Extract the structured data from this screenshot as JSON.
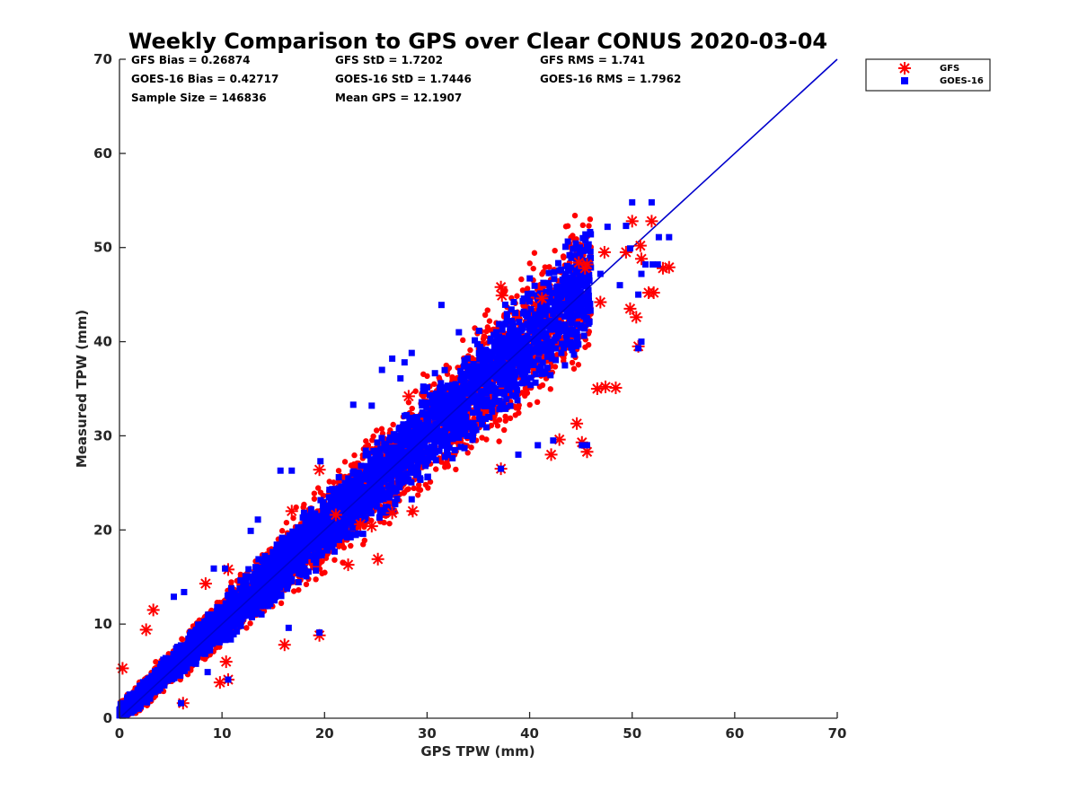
{
  "chart_data": {
    "type": "scatter",
    "title": "Weekly Comparison to GPS over Clear CONUS 2020-03-04",
    "xlabel": "GPS TPW (mm)",
    "ylabel": "Measured TPW (mm)",
    "xlim": [
      0,
      70
    ],
    "ylim": [
      0,
      70
    ],
    "x_ticks": [
      "0",
      "10",
      "20",
      "30",
      "40",
      "50",
      "60",
      "70"
    ],
    "y_ticks": [
      "0",
      "10",
      "20",
      "30",
      "40",
      "50",
      "60",
      "70"
    ],
    "grid": false,
    "legend_position": "outside top-right",
    "stats": [
      [
        "GFS Bias = 0.26874",
        "GFS StD = 1.7202",
        "GFS RMS = 1.741"
      ],
      [
        "GOES-16 Bias = 0.42717",
        "GOES-16 StD = 1.7446",
        "GOES-16 RMS = 1.7962"
      ],
      [
        "Sample Size = 146836",
        "Mean GPS = 12.1907",
        ""
      ]
    ],
    "reference_line": {
      "label": "1:1",
      "x": [
        0,
        70
      ],
      "y": [
        0,
        70
      ],
      "color": "#0000cc"
    },
    "series": [
      {
        "name": "GFS",
        "marker": "asterisk",
        "color": "#ff0000",
        "outliers": [
          [
            50,
            52.8
          ],
          [
            51.9,
            52.8
          ],
          [
            47.3,
            49.5
          ],
          [
            49.4,
            49.5
          ],
          [
            50.8,
            50.2
          ],
          [
            50.9,
            48.8
          ],
          [
            53.0,
            47.8
          ],
          [
            53.6,
            47.9
          ],
          [
            51.6,
            45.2
          ],
          [
            52.1,
            45.2
          ],
          [
            44.8,
            48.4
          ],
          [
            45.6,
            48.2
          ],
          [
            45.4,
            47.8
          ],
          [
            49.8,
            43.5
          ],
          [
            50.4,
            42.6
          ],
          [
            50.6,
            39.5
          ],
          [
            48.4,
            35.1
          ],
          [
            47.4,
            35.2
          ],
          [
            46.6,
            35.0
          ],
          [
            37.2,
            45.8
          ],
          [
            37.3,
            44.9
          ],
          [
            44.6,
            31.3
          ],
          [
            45.6,
            28.3
          ],
          [
            45.1,
            29.3
          ],
          [
            42.9,
            29.6
          ],
          [
            42.1,
            28.0
          ],
          [
            37.2,
            26.5
          ],
          [
            28.6,
            22.0
          ],
          [
            26.6,
            21.8
          ],
          [
            24.6,
            20.4
          ],
          [
            23.5,
            20.6
          ],
          [
            21.1,
            21.6
          ],
          [
            25.2,
            16.9
          ],
          [
            22.3,
            16.3
          ],
          [
            19.5,
            8.8
          ],
          [
            16.1,
            7.8
          ],
          [
            10.4,
            6.0
          ],
          [
            9.8,
            3.8
          ],
          [
            10.6,
            4.1
          ],
          [
            6.2,
            1.6
          ],
          [
            3.3,
            11.5
          ],
          [
            2.6,
            9.4
          ],
          [
            0.3,
            5.3
          ],
          [
            16.8,
            22.0
          ],
          [
            10.6,
            15.8
          ],
          [
            8.4,
            14.3
          ],
          [
            19.5,
            26.4
          ],
          [
            28.2,
            34.2
          ],
          [
            41.2,
            44.6
          ],
          [
            46.9,
            44.2
          ]
        ]
      },
      {
        "name": "GOES-16",
        "marker": "square",
        "color": "#0000ff",
        "outliers": [
          [
            47.6,
            52.2
          ],
          [
            49.4,
            52.3
          ],
          [
            51.9,
            54.8
          ],
          [
            50,
            54.8
          ],
          [
            52.6,
            51.1
          ],
          [
            53.6,
            51.1
          ],
          [
            52.5,
            48.2
          ],
          [
            52,
            48.2
          ],
          [
            51.3,
            48.2
          ],
          [
            50.9,
            47.2
          ],
          [
            50.6,
            45.0
          ],
          [
            50.9,
            40.0
          ],
          [
            50.6,
            39.3
          ],
          [
            45.6,
            50.1
          ],
          [
            49.8,
            49.9
          ],
          [
            44.9,
            50.0
          ],
          [
            31.4,
            43.9
          ],
          [
            26.6,
            38.2
          ],
          [
            25.6,
            37.0
          ],
          [
            27.8,
            37.8
          ],
          [
            28.5,
            38.8
          ],
          [
            27.4,
            36.1
          ],
          [
            37.2,
            26.5
          ],
          [
            45.1,
            29.0
          ],
          [
            45.6,
            29.0
          ],
          [
            42.3,
            29.5
          ],
          [
            40.8,
            29.0
          ],
          [
            38.9,
            28.0
          ],
          [
            32.0,
            29.3
          ],
          [
            16.8,
            26.3
          ],
          [
            15.7,
            26.3
          ],
          [
            19.6,
            27.3
          ],
          [
            22.8,
            33.3
          ],
          [
            24.6,
            33.2
          ],
          [
            12.8,
            19.9
          ],
          [
            13.5,
            21.1
          ],
          [
            10.3,
            15.9
          ],
          [
            9.2,
            15.9
          ],
          [
            6.3,
            13.4
          ],
          [
            5.3,
            12.9
          ],
          [
            6.0,
            1.6
          ],
          [
            10.6,
            4.1
          ],
          [
            8.6,
            4.9
          ],
          [
            19.5,
            9.1
          ],
          [
            16.5,
            9.6
          ],
          [
            37.2,
            33.2
          ],
          [
            46.9,
            47.2
          ],
          [
            48.8,
            46.0
          ],
          [
            36.8,
            39.6
          ],
          [
            33.1,
            41.0
          ]
        ]
      }
    ]
  }
}
